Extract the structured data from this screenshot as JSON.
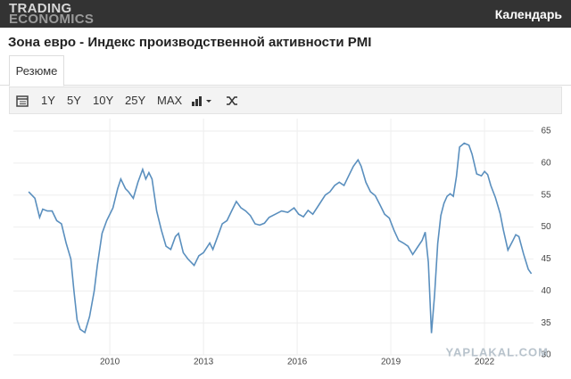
{
  "header": {
    "logo": [
      "TRADING",
      "ECONOMICS"
    ],
    "nav": "Календарь"
  },
  "title": "Зона евро - Индекс производственной активности PMI",
  "tabs": [
    "Резюме"
  ],
  "toolbar": [
    "1Y",
    "5Y",
    "10Y",
    "25Y",
    "MAX"
  ],
  "watermark": "YAPLAKAL.COM",
  "chart_data": {
    "type": "line",
    "color": "#5a8fbe",
    "x": [
      2007.4,
      2007.6,
      2007.75,
      2007.85,
      2008.0,
      2008.15,
      2008.3,
      2008.45,
      2008.6,
      2008.75,
      2008.85,
      2008.95,
      2009.05,
      2009.2,
      2009.35,
      2009.5,
      2009.6,
      2009.75,
      2009.9,
      2010.1,
      2010.25,
      2010.35,
      2010.5,
      2010.6,
      2010.75,
      2010.9,
      2011.05,
      2011.15,
      2011.25,
      2011.35,
      2011.5,
      2011.65,
      2011.8,
      2011.95,
      2012.1,
      2012.2,
      2012.35,
      2012.5,
      2012.7,
      2012.85,
      2013.0,
      2013.2,
      2013.3,
      2013.45,
      2013.6,
      2013.75,
      2013.9,
      2014.05,
      2014.2,
      2014.35,
      2014.5,
      2014.65,
      2014.8,
      2014.95,
      2015.1,
      2015.3,
      2015.5,
      2015.7,
      2015.9,
      2016.05,
      2016.2,
      2016.35,
      2016.5,
      2016.7,
      2016.9,
      2017.05,
      2017.2,
      2017.35,
      2017.5,
      2017.65,
      2017.8,
      2017.95,
      2018.05,
      2018.2,
      2018.35,
      2018.5,
      2018.65,
      2018.8,
      2018.95,
      2019.1,
      2019.25,
      2019.4,
      2019.55,
      2019.7,
      2019.85,
      2020.0,
      2020.1,
      2020.2,
      2020.3,
      2020.4,
      2020.5,
      2020.6,
      2020.7,
      2020.8,
      2020.9,
      2021.0,
      2021.1,
      2021.2,
      2021.35,
      2021.5,
      2021.6,
      2021.75,
      2021.9,
      2022.0,
      2022.1,
      2022.2,
      2022.35,
      2022.5,
      2022.6,
      2022.75,
      2022.9,
      2023.0,
      2023.1,
      2023.25,
      2023.4,
      2023.5
    ],
    "values": [
      55.5,
      54.5,
      51.5,
      52.8,
      52.5,
      52.5,
      51,
      50.5,
      47.5,
      45,
      40,
      35.5,
      34,
      33.5,
      36,
      40,
      44,
      49,
      51,
      53,
      56,
      57.5,
      56,
      55.5,
      54.5,
      57,
      59,
      57.5,
      58.5,
      57.5,
      52.5,
      49.5,
      47,
      46.5,
      48.5,
      49,
      46,
      45,
      44,
      45.5,
      46,
      47.5,
      46.5,
      48.5,
      50.5,
      51,
      52.5,
      54,
      53,
      52.5,
      51.8,
      50.5,
      50.3,
      50.6,
      51.5,
      52,
      52.5,
      52.3,
      53,
      52,
      51.6,
      52.6,
      52,
      53.5,
      55,
      55.5,
      56.5,
      57,
      56.5,
      58,
      59.5,
      60.5,
      59.5,
      57,
      55.5,
      54.9,
      53.5,
      52,
      51.4,
      49.5,
      47.9,
      47.5,
      47,
      45.7,
      46.8,
      47.9,
      49.2,
      44.5,
      33.4,
      39.4,
      47.4,
      51.8,
      53.7,
      54.8,
      55.2,
      54.8,
      57.9,
      62.5,
      63.1,
      62.8,
      61.4,
      58.3,
      58,
      58.7,
      58.2,
      56.5,
      54.6,
      52.1,
      49.6,
      46.4,
      47.8,
      48.8,
      48.5,
      45.8,
      43.4,
      42.7
    ],
    "xlim": [
      2006.91,
      2023.57
    ],
    "ylim": [
      30,
      65
    ],
    "xticks": [
      2010,
      2013,
      2016,
      2019,
      2022
    ],
    "yticks": [
      30,
      35,
      40,
      45,
      50,
      55,
      60,
      65
    ],
    "grid": true
  }
}
